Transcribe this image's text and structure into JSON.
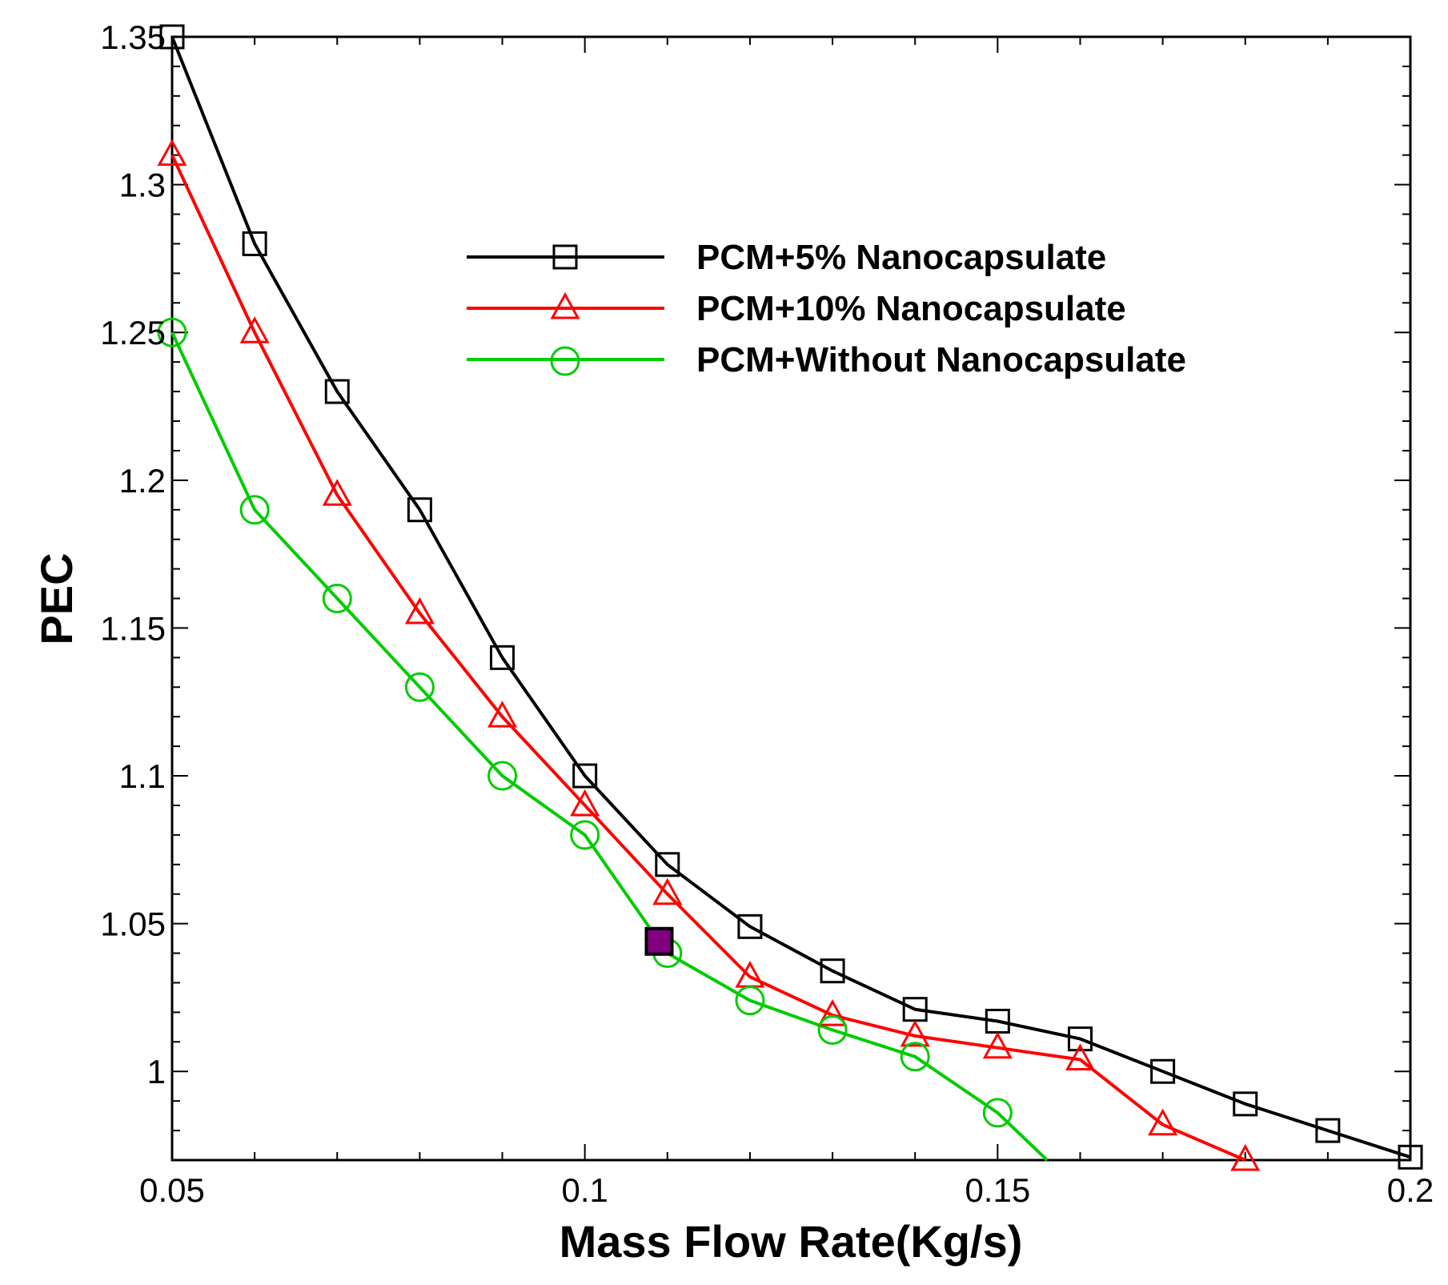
{
  "chart_data": {
    "type": "line",
    "xlabel": "Mass Flow Rate(Kg/s)",
    "ylabel": "PEC",
    "xlim": [
      0.05,
      0.2
    ],
    "ylim": [
      0.97,
      1.35
    ],
    "xticks": [
      "0.05",
      "0.1",
      "0.15",
      "0.2"
    ],
    "yticks": [
      "1",
      "1.05",
      "1.1",
      "1.15",
      "1.2",
      "1.25",
      "1.3",
      "1.35"
    ],
    "grid": false,
    "legend_position": "top-right",
    "series": [
      {
        "name": "PCM+5% Nanocapsulate",
        "color": "#000000",
        "marker": "square",
        "x": [
          0.05,
          0.06,
          0.07,
          0.08,
          0.09,
          0.1,
          0.11,
          0.12,
          0.13,
          0.14,
          0.15,
          0.16,
          0.17,
          0.18,
          0.19,
          0.2
        ],
        "y": [
          1.35,
          1.28,
          1.23,
          1.19,
          1.14,
          1.1,
          1.07,
          1.049,
          1.034,
          1.021,
          1.017,
          1.011,
          1.0,
          0.989,
          0.98,
          0.971
        ]
      },
      {
        "name": "PCM+10% Nanocapsulate",
        "color": "#ff0000",
        "marker": "triangle",
        "x": [
          0.05,
          0.06,
          0.07,
          0.08,
          0.09,
          0.1,
          0.11,
          0.12,
          0.13,
          0.14,
          0.15,
          0.16,
          0.17,
          0.18
        ],
        "y": [
          1.31,
          1.25,
          1.195,
          1.155,
          1.12,
          1.09,
          1.06,
          1.032,
          1.019,
          1.012,
          1.008,
          1.004,
          0.982,
          0.97
        ]
      },
      {
        "name": "PCM+Without Nanocapsulate",
        "color": "#00cc00",
        "marker": "circle",
        "x": [
          0.05,
          0.06,
          0.07,
          0.08,
          0.09,
          0.1,
          0.11,
          0.12,
          0.13,
          0.14,
          0.15,
          0.156
        ],
        "y": [
          1.25,
          1.19,
          1.16,
          1.13,
          1.1,
          1.08,
          1.04,
          1.024,
          1.014,
          1.005,
          0.986,
          0.97
        ],
        "markers_until_index": 10
      }
    ],
    "annotations": [
      {
        "type": "filled-square-marker",
        "x": 0.109,
        "y": 1.044,
        "fill": "#800080",
        "outline": "#000000"
      }
    ]
  }
}
